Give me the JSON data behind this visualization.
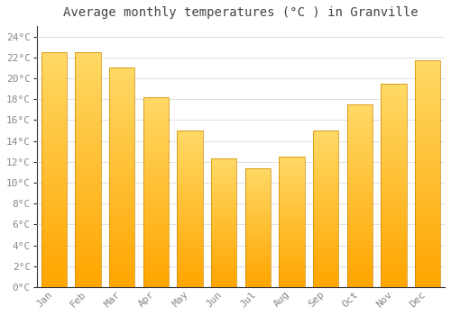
{
  "title": "Average monthly temperatures (°C ) in Granville",
  "months": [
    "Jan",
    "Feb",
    "Mar",
    "Apr",
    "May",
    "Jun",
    "Jul",
    "Aug",
    "Sep",
    "Oct",
    "Nov",
    "Dec"
  ],
  "values": [
    22.5,
    22.5,
    21.0,
    18.2,
    15.0,
    12.3,
    11.4,
    12.5,
    15.0,
    17.5,
    19.5,
    21.7
  ],
  "bar_color_bottom": "#FFA500",
  "bar_color_top": "#FFD966",
  "ylim": [
    0,
    25
  ],
  "ytick_step": 2,
  "background_color": "#FFFFFF",
  "grid_color": "#E0E0E0",
  "title_fontsize": 10,
  "tick_fontsize": 8,
  "font_family": "monospace",
  "tick_color": "#888888",
  "spine_color": "#333333"
}
